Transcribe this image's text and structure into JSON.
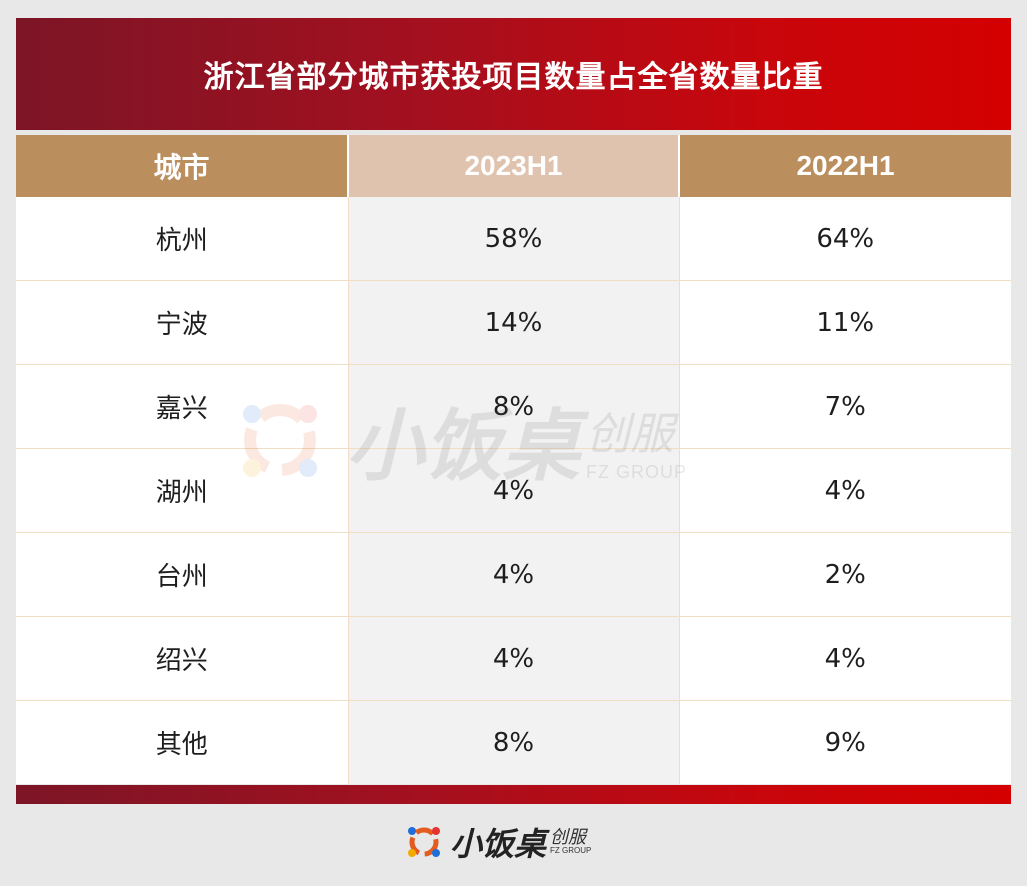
{
  "title": "浙江省部分城市获投项目数量占全省数量比重",
  "table": {
    "headers": [
      "城市",
      "2023H1",
      "2022H1"
    ],
    "rows": [
      {
        "city": "杭州",
        "h2023": "58%",
        "h2022": "64%"
      },
      {
        "city": "宁波",
        "h2023": "14%",
        "h2022": "11%"
      },
      {
        "city": "嘉兴",
        "h2023": "8%",
        "h2022": "7%"
      },
      {
        "city": "湖州",
        "h2023": "4%",
        "h2022": "4%"
      },
      {
        "city": "台州",
        "h2023": "4%",
        "h2022": "2%"
      },
      {
        "city": "绍兴",
        "h2023": "4%",
        "h2022": "4%"
      },
      {
        "city": "其他",
        "h2023": "8%",
        "h2022": "9%"
      }
    ]
  },
  "watermark": {
    "main": "小饭桌",
    "sub": "创服",
    "en": "FZ GROUP"
  },
  "logo": {
    "main": "小饭桌",
    "sub": "创服",
    "en": "FZ GROUP",
    "icon": "fz-group-logo-icon"
  },
  "colors": {
    "title_bar": "#c8060c",
    "header": "#bb8e5e",
    "header_highlight": "#e0c3ae"
  }
}
